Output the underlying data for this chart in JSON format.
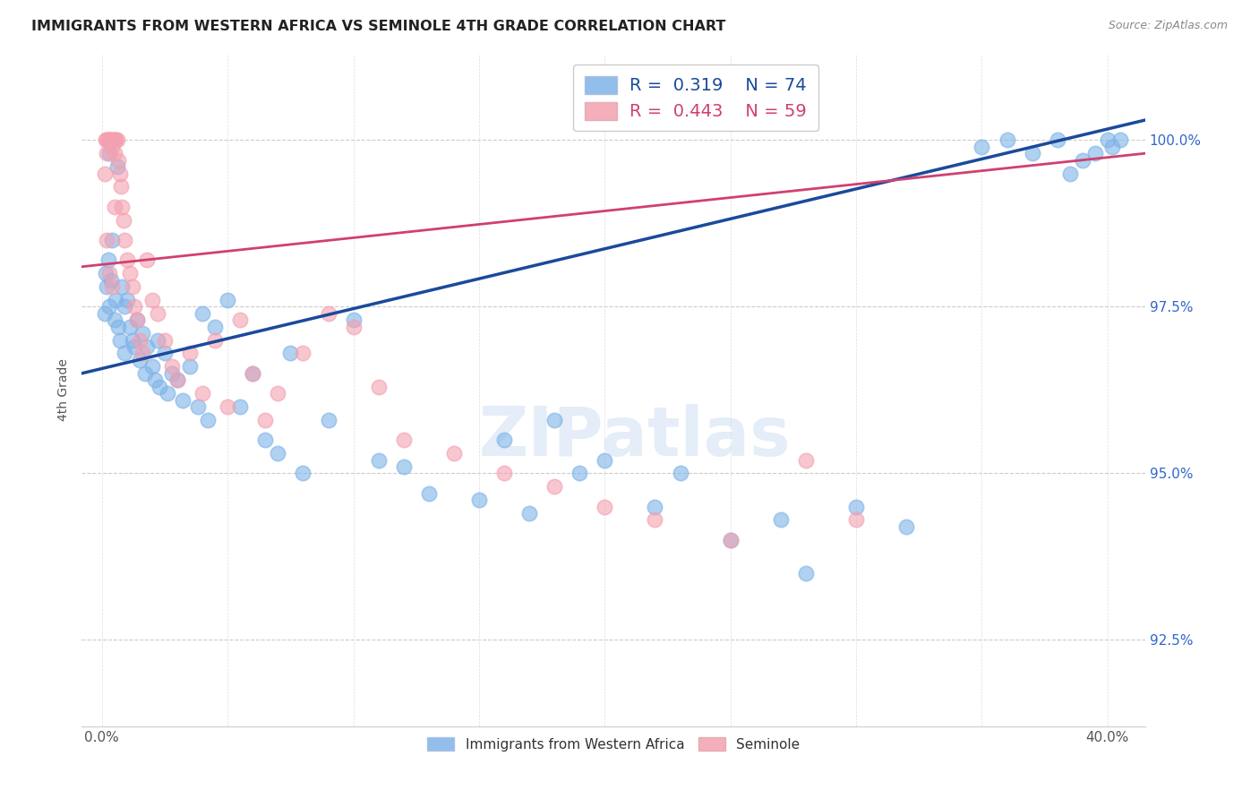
{
  "title": "IMMIGRANTS FROM WESTERN AFRICA VS SEMINOLE 4TH GRADE CORRELATION CHART",
  "source": "Source: ZipAtlas.com",
  "ylabel": "4th Grade",
  "y_ticks": [
    92.5,
    95.0,
    97.5,
    100.0
  ],
  "y_tick_labels": [
    "92.5%",
    "95.0%",
    "97.5%",
    "100.0%"
  ],
  "y_min": 91.2,
  "y_max": 101.3,
  "x_min": -0.8,
  "x_max": 41.5,
  "legend_blue_r": "R =  0.319",
  "legend_blue_n": "N = 74",
  "legend_pink_r": "R =  0.443",
  "legend_pink_n": "N = 59",
  "blue_color": "#7EB3E8",
  "pink_color": "#F4A0B0",
  "trendline_blue": "#1A4A9C",
  "trendline_pink": "#D04070",
  "background_color": "#FFFFFF",
  "watermark_text": "ZIPatlas",
  "blue_x": [
    0.1,
    0.15,
    0.2,
    0.25,
    0.3,
    0.3,
    0.35,
    0.4,
    0.5,
    0.55,
    0.6,
    0.65,
    0.7,
    0.8,
    0.9,
    0.9,
    1.0,
    1.1,
    1.2,
    1.3,
    1.4,
    1.5,
    1.6,
    1.7,
    1.8,
    2.0,
    2.1,
    2.2,
    2.3,
    2.5,
    2.6,
    2.8,
    3.0,
    3.2,
    3.5,
    3.8,
    4.0,
    4.2,
    4.5,
    5.0,
    5.5,
    6.0,
    6.5,
    7.0,
    7.5,
    8.0,
    9.0,
    10.0,
    11.0,
    12.0,
    13.0,
    15.0,
    16.0,
    17.0,
    18.0,
    19.0,
    20.0,
    22.0,
    23.0,
    25.0,
    27.0,
    28.0,
    30.0,
    32.0,
    35.0,
    36.0,
    37.0,
    38.0,
    38.5,
    39.0,
    39.5,
    40.0,
    40.2,
    40.5
  ],
  "blue_y": [
    97.4,
    98.0,
    97.8,
    98.2,
    99.8,
    97.5,
    97.9,
    98.5,
    97.3,
    97.6,
    99.6,
    97.2,
    97.0,
    97.8,
    97.5,
    96.8,
    97.6,
    97.2,
    97.0,
    96.9,
    97.3,
    96.7,
    97.1,
    96.5,
    96.9,
    96.6,
    96.4,
    97.0,
    96.3,
    96.8,
    96.2,
    96.5,
    96.4,
    96.1,
    96.6,
    96.0,
    97.4,
    95.8,
    97.2,
    97.6,
    96.0,
    96.5,
    95.5,
    95.3,
    96.8,
    95.0,
    95.8,
    97.3,
    95.2,
    95.1,
    94.7,
    94.6,
    95.5,
    94.4,
    95.8,
    95.0,
    95.2,
    94.5,
    95.0,
    94.0,
    94.3,
    93.5,
    94.5,
    94.2,
    99.9,
    100.0,
    99.8,
    100.0,
    99.5,
    99.7,
    99.8,
    100.0,
    99.9,
    100.0
  ],
  "pink_x": [
    0.1,
    0.15,
    0.2,
    0.2,
    0.25,
    0.3,
    0.3,
    0.35,
    0.4,
    0.4,
    0.5,
    0.5,
    0.5,
    0.55,
    0.6,
    0.65,
    0.7,
    0.75,
    0.8,
    0.85,
    0.9,
    1.0,
    1.1,
    1.2,
    1.3,
    1.4,
    1.5,
    1.6,
    1.8,
    2.0,
    2.2,
    2.5,
    2.8,
    3.0,
    3.5,
    4.0,
    4.5,
    5.0,
    5.5,
    6.0,
    6.5,
    7.0,
    8.0,
    9.0,
    10.0,
    11.0,
    12.0,
    14.0,
    16.0,
    18.0,
    20.0,
    22.0,
    25.0,
    28.0,
    30.0,
    0.2,
    0.3,
    0.4,
    0.5
  ],
  "pink_y": [
    99.5,
    100.0,
    100.0,
    99.8,
    100.0,
    100.0,
    100.0,
    100.0,
    100.0,
    99.9,
    100.0,
    100.0,
    99.8,
    100.0,
    100.0,
    99.7,
    99.5,
    99.3,
    99.0,
    98.8,
    98.5,
    98.2,
    98.0,
    97.8,
    97.5,
    97.3,
    97.0,
    96.8,
    98.2,
    97.6,
    97.4,
    97.0,
    96.6,
    96.4,
    96.8,
    96.2,
    97.0,
    96.0,
    97.3,
    96.5,
    95.8,
    96.2,
    96.8,
    97.4,
    97.2,
    96.3,
    95.5,
    95.3,
    95.0,
    94.8,
    94.5,
    94.3,
    94.0,
    95.2,
    94.3,
    98.5,
    98.0,
    97.8,
    99.0
  ]
}
